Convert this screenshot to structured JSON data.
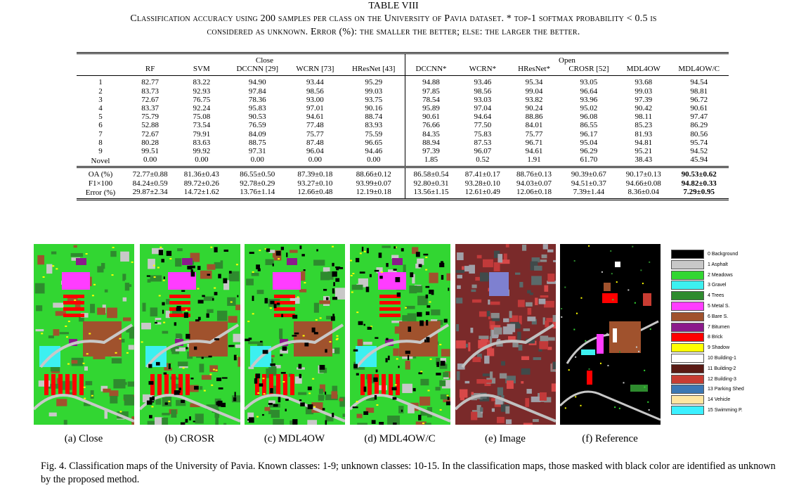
{
  "table": {
    "title": "TABLE VIII",
    "caption_line1": "Classification accuracy using 200 samples per class on the University of Pavia dataset. * top-1 softmax probability < 0.5 is",
    "caption_line2": "considered as unknown. Error (%): the smaller the better; else: the larger the better.",
    "group_close": "Close",
    "group_open": "Open",
    "columns": [
      "RF",
      "SVM",
      "DCCNN [29]",
      "WCRN [73]",
      "HResNet [43]",
      "DCCNN*",
      "WCRN*",
      "HResNet*",
      "CROSR [52]",
      "MDL4OW",
      "MDL4OW/C"
    ],
    "class_rows": [
      {
        "label": "1",
        "values": [
          "82.77",
          "83.22",
          "94.90",
          "93.44",
          "95.29",
          "94.88",
          "93.46",
          "95.34",
          "93.05",
          "93.68",
          "94.54"
        ]
      },
      {
        "label": "2",
        "values": [
          "83.73",
          "92.93",
          "97.84",
          "98.56",
          "99.03",
          "97.85",
          "98.56",
          "99.04",
          "96.64",
          "99.03",
          "98.81"
        ]
      },
      {
        "label": "3",
        "values": [
          "72.67",
          "76.75",
          "78.36",
          "93.00",
          "93.75",
          "78.54",
          "93.03",
          "93.82",
          "93.96",
          "97.39",
          "96.72"
        ]
      },
      {
        "label": "4",
        "values": [
          "83.37",
          "92.24",
          "95.83",
          "97.01",
          "90.16",
          "95.89",
          "97.04",
          "90.24",
          "95.02",
          "90.42",
          "90.61"
        ]
      },
      {
        "label": "5",
        "values": [
          "75.79",
          "75.08",
          "90.53",
          "94.61",
          "88.74",
          "90.61",
          "94.64",
          "88.86",
          "96.08",
          "98.11",
          "97.47"
        ]
      },
      {
        "label": "6",
        "values": [
          "52.88",
          "73.54",
          "76.59",
          "77.48",
          "83.93",
          "76.66",
          "77.50",
          "84.01",
          "86.55",
          "85.23",
          "86.29"
        ]
      },
      {
        "label": "7",
        "values": [
          "72.67",
          "79.91",
          "84.09",
          "75.77",
          "75.59",
          "84.35",
          "75.83",
          "75.77",
          "96.17",
          "81.93",
          "80.56"
        ]
      },
      {
        "label": "8",
        "values": [
          "80.28",
          "83.63",
          "88.75",
          "87.48",
          "96.65",
          "88.94",
          "87.53",
          "96.71",
          "95.04",
          "94.81",
          "95.74"
        ]
      },
      {
        "label": "9",
        "values": [
          "99.51",
          "99.92",
          "97.31",
          "96.04",
          "94.46",
          "97.39",
          "96.07",
          "94.61",
          "96.29",
          "95.21",
          "94.52"
        ]
      },
      {
        "label": "Novel",
        "values": [
          "0.00",
          "0.00",
          "0.00",
          "0.00",
          "0.00",
          "1.85",
          "0.52",
          "1.91",
          "61.70",
          "38.43",
          "45.94"
        ]
      }
    ],
    "summary_rows": [
      {
        "label": "OA (%)",
        "values": [
          "72.77±0.88",
          "81.36±0.43",
          "86.55±0.50",
          "87.39±0.18",
          "88.66±0.12",
          "86.58±0.54",
          "87.41±0.17",
          "88.76±0.13",
          "90.39±0.67",
          "90.17±0.13",
          "90.53±0.62"
        ]
      },
      {
        "label": "F1×100",
        "values": [
          "84.24±0.59",
          "89.72±0.26",
          "92.78±0.29",
          "93.27±0.10",
          "93.99±0.07",
          "92.80±0.31",
          "93.28±0.10",
          "94.03±0.07",
          "94.51±0.37",
          "94.66±0.08",
          "94.82±0.33"
        ]
      },
      {
        "label": "Error (%)",
        "values": [
          "29.87±2.34",
          "14.72±1.62",
          "13.76±1.14",
          "12.66±0.48",
          "12.19±0.18",
          "13.56±1.15",
          "12.61±0.49",
          "12.06±0.18",
          "7.39±1.44",
          "8.36±0.04",
          "7.29±0.95"
        ]
      }
    ],
    "bold_column_index": 10,
    "bold_rows": "summary"
  },
  "figure": {
    "panels": [
      {
        "label": "(a) Close",
        "kind": "classmap"
      },
      {
        "label": "(b) CROSR",
        "kind": "classmap-masked"
      },
      {
        "label": "(c) MDL4OW",
        "kind": "classmap-masked"
      },
      {
        "label": "(d) MDL4OW/C",
        "kind": "classmap-masked"
      },
      {
        "label": "(e) Image",
        "kind": "false-color"
      },
      {
        "label": "(f) Reference",
        "kind": "reference"
      }
    ],
    "legend": [
      {
        "text": "0 Background",
        "color": "#000000"
      },
      {
        "text": "1 Asphalt",
        "color": "#c8c8c8"
      },
      {
        "text": "2 Meadows",
        "color": "#32d632"
      },
      {
        "text": "3 Gravel",
        "color": "#3cf0f0"
      },
      {
        "text": "4 Trees",
        "color": "#2e8b2e"
      },
      {
        "text": "5 Metal S.",
        "color": "#ff3cff"
      },
      {
        "text": "6 Bare S.",
        "color": "#a0522d"
      },
      {
        "text": "7 Bitumen",
        "color": "#8b1a8b"
      },
      {
        "text": "8 Brick",
        "color": "#ff0000"
      },
      {
        "text": "9 Shadow",
        "color": "#ffff00"
      },
      {
        "text": "10 Building-1",
        "color": "#ffffff"
      },
      {
        "text": "11 Building-2",
        "color": "#5a1a14"
      },
      {
        "text": "12 Building-3",
        "color": "#c83c32"
      },
      {
        "text": "13 Parking Shed",
        "color": "#3c78b4"
      },
      {
        "text": "14 Vehicle",
        "color": "#ffe6a0"
      },
      {
        "text": "15 Swimming P.",
        "color": "#3cf0ff"
      }
    ],
    "caption": "Fig. 4.  Classification maps of the University of Pavia. Known classes: 1-9; unknown classes: 10-15. In the classification maps, those masked with black color are identified as unknown by the proposed method."
  }
}
